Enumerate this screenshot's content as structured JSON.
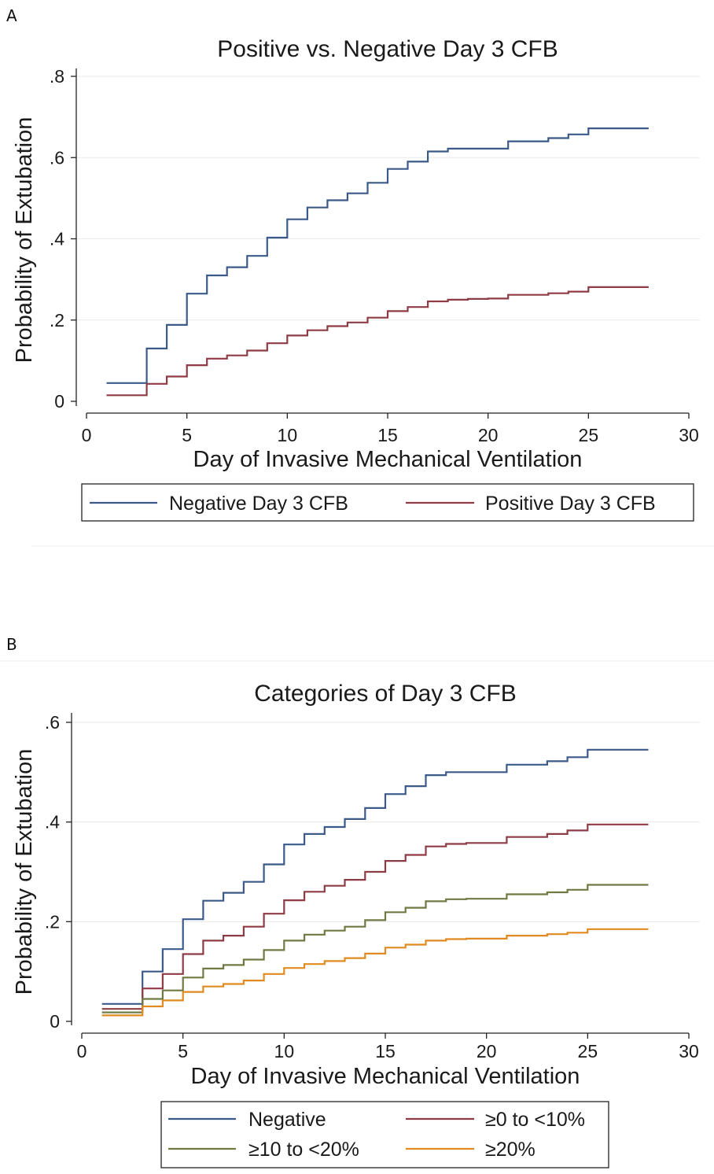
{
  "chart_data": [
    {
      "type": "line",
      "panel_label": "A",
      "title": "Positive vs. Negative Day 3 CFB",
      "xlabel": "Day of Invasive Mechanical Ventilation",
      "ylabel": "Probability of Extubation",
      "xlim": [
        0,
        30
      ],
      "ylim": [
        0,
        0.8
      ],
      "x_ticks": [
        0,
        5,
        10,
        15,
        20,
        25,
        30
      ],
      "x_tick_labels": [
        "0",
        "5",
        "10",
        "15",
        "20",
        "25",
        "30"
      ],
      "y_ticks": [
        0,
        0.2,
        0.4,
        0.6,
        0.8
      ],
      "y_tick_labels": [
        "0",
        ".2",
        ".4",
        ".6",
        ".8"
      ],
      "grid": true,
      "legend_position": "bottom",
      "x": [
        1,
        3,
        4,
        5,
        6,
        7,
        8,
        9,
        10,
        11,
        12,
        13,
        14,
        15,
        16,
        17,
        18,
        19,
        20,
        21,
        22,
        23,
        24,
        25,
        26,
        27,
        28
      ],
      "series": [
        {
          "name": "Negative Day 3 CFB",
          "color": "#3b5a8a",
          "values": [
            0.045,
            0.13,
            0.188,
            0.265,
            0.31,
            0.33,
            0.358,
            0.403,
            0.448,
            0.477,
            0.495,
            0.512,
            0.538,
            0.572,
            0.59,
            0.615,
            0.622,
            0.622,
            0.622,
            0.64,
            0.64,
            0.648,
            0.657,
            0.672,
            0.672,
            0.672,
            0.672
          ]
        },
        {
          "name": "Positive Day 3 CFB",
          "color": "#8e3b44",
          "values": [
            0.015,
            0.043,
            0.061,
            0.089,
            0.105,
            0.113,
            0.125,
            0.143,
            0.162,
            0.175,
            0.185,
            0.194,
            0.206,
            0.222,
            0.232,
            0.246,
            0.25,
            0.252,
            0.253,
            0.262,
            0.262,
            0.266,
            0.27,
            0.281,
            0.281,
            0.281,
            0.281
          ]
        }
      ]
    },
    {
      "type": "line",
      "panel_label": "B",
      "title": "Categories of Day 3 CFB",
      "xlabel": "Day of Invasive Mechanical Ventilation",
      "ylabel": "Probability of Extubation",
      "xlim": [
        0,
        30
      ],
      "ylim": [
        0,
        0.6
      ],
      "x_ticks": [
        0,
        5,
        10,
        15,
        20,
        25,
        30
      ],
      "x_tick_labels": [
        "0",
        "5",
        "10",
        "15",
        "20",
        "25",
        "30"
      ],
      "y_ticks": [
        0,
        0.2,
        0.4,
        0.6
      ],
      "y_tick_labels": [
        "0",
        ".2",
        ".4",
        ".6"
      ],
      "grid": true,
      "legend_position": "bottom",
      "x": [
        1,
        3,
        4,
        5,
        6,
        7,
        8,
        9,
        10,
        11,
        12,
        13,
        14,
        15,
        16,
        17,
        18,
        19,
        20,
        21,
        22,
        23,
        24,
        25,
        26,
        27,
        28
      ],
      "series": [
        {
          "name": "Negative",
          "color": "#3b5a8a",
          "values": [
            0.035,
            0.1,
            0.145,
            0.205,
            0.242,
            0.258,
            0.28,
            0.315,
            0.355,
            0.376,
            0.39,
            0.406,
            0.428,
            0.456,
            0.472,
            0.494,
            0.5,
            0.5,
            0.5,
            0.515,
            0.515,
            0.522,
            0.53,
            0.545,
            0.545,
            0.545,
            0.545
          ]
        },
        {
          "name": "≥0 to <10%",
          "color": "#8e3b44",
          "values": [
            0.025,
            0.066,
            0.095,
            0.135,
            0.162,
            0.172,
            0.19,
            0.216,
            0.243,
            0.26,
            0.272,
            0.284,
            0.3,
            0.322,
            0.334,
            0.351,
            0.356,
            0.358,
            0.358,
            0.37,
            0.37,
            0.376,
            0.383,
            0.395,
            0.395,
            0.395,
            0.395
          ]
        },
        {
          "name": "≥10 to <20%",
          "color": "#6f7a43",
          "values": [
            0.018,
            0.045,
            0.062,
            0.088,
            0.106,
            0.113,
            0.124,
            0.143,
            0.162,
            0.174,
            0.182,
            0.19,
            0.203,
            0.219,
            0.228,
            0.241,
            0.245,
            0.246,
            0.246,
            0.255,
            0.255,
            0.259,
            0.264,
            0.274,
            0.274,
            0.274,
            0.274
          ]
        },
        {
          "name": "≥20%",
          "color": "#e08a1f",
          "values": [
            0.012,
            0.03,
            0.042,
            0.059,
            0.07,
            0.075,
            0.082,
            0.095,
            0.107,
            0.115,
            0.121,
            0.127,
            0.136,
            0.148,
            0.154,
            0.162,
            0.165,
            0.166,
            0.166,
            0.172,
            0.172,
            0.175,
            0.178,
            0.185,
            0.185,
            0.185,
            0.185
          ]
        }
      ]
    }
  ]
}
